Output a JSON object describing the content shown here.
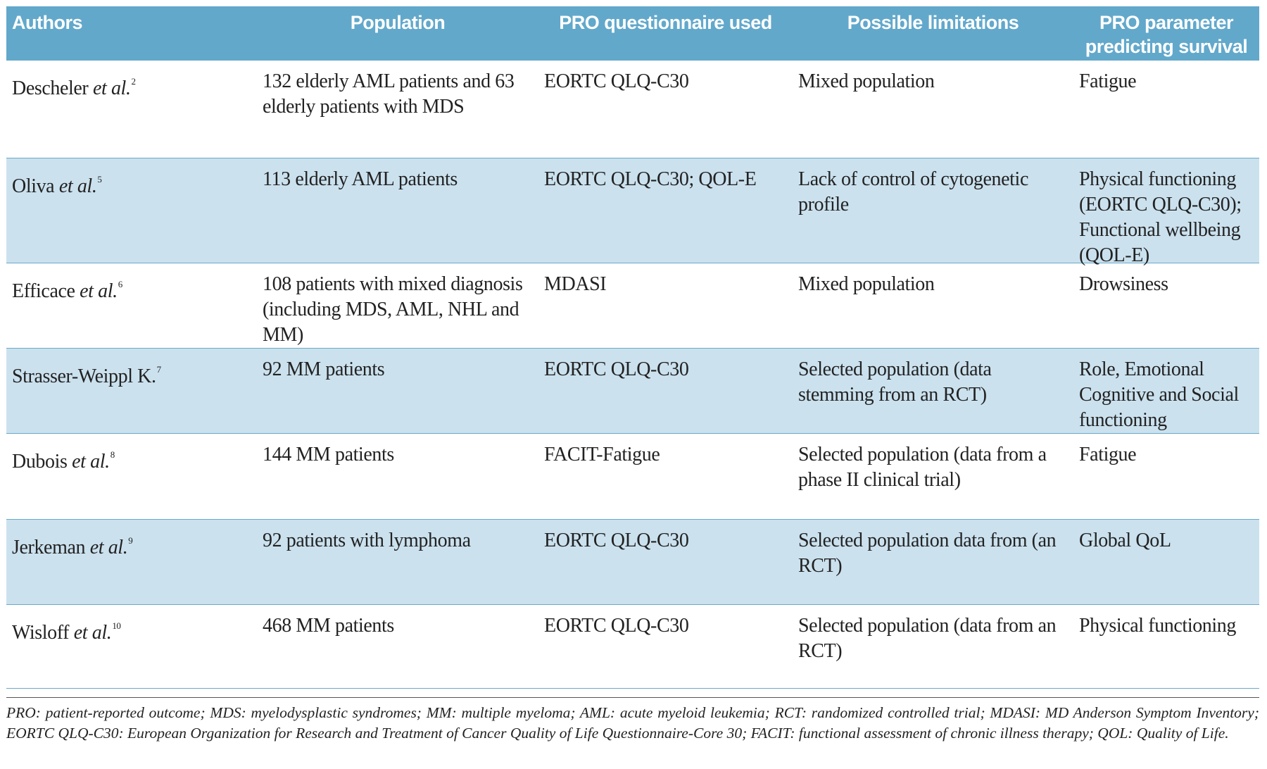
{
  "table": {
    "headers": [
      "Authors",
      "Population",
      "PRO questionnaire used",
      "Possible limitations",
      "PRO parameter predicting survival"
    ],
    "rows": [
      {
        "author": "Descheler",
        "et_al": "et al.",
        "ref": "2",
        "population": "132 elderly AML patients and 63 elderly patients with MDS",
        "questionnaire": "EORTC QLQ-C30",
        "limitations": "Mixed population",
        "parameter": "Fatigue"
      },
      {
        "author": "Oliva",
        "et_al": "et al.",
        "ref": "5",
        "population": "113 elderly AML patients",
        "questionnaire": "EORTC QLQ-C30; QOL-E",
        "limitations": "Lack of control of cytogenetic profile",
        "parameter": "Physical functioning (EORTC QLQ-C30); Functional wellbeing (QOL-E)"
      },
      {
        "author": "Efficace",
        "et_al": "et al.",
        "ref": "6",
        "population": "108 patients with mixed diagnosis (including MDS, AML, NHL and MM)",
        "questionnaire": "MDASI",
        "limitations": "Mixed population",
        "parameter": "Drowsiness"
      },
      {
        "author": "Strasser-Weippl K.",
        "ref": "7",
        "population": "92 MM patients",
        "questionnaire": "EORTC QLQ-C30",
        "limitations": "Selected population (data stemming from an RCT)",
        "parameter": "Role, Emotional Cognitive and Social functioning"
      },
      {
        "author": "Dubois",
        "et_al": "et al.",
        "ref": "8",
        "population": "144 MM patients",
        "questionnaire": "FACIT-Fatigue",
        "limitations": "Selected population (data from a phase II clinical trial)",
        "parameter": "Fatigue"
      },
      {
        "author": "Jerkeman",
        "et_al": "et al.",
        "ref": "9",
        "population": "92 patients with lymphoma",
        "questionnaire": "EORTC QLQ-C30",
        "limitations": "Selected population data from (an RCT)",
        "parameter": "Global QoL"
      },
      {
        "author": "Wisloff",
        "et_al": "et al.",
        "ref": "10",
        "population": "468 MM patients",
        "questionnaire": "EORTC QLQ-C30",
        "limitations": "Selected population (data from an RCT)",
        "parameter": "Physical functioning"
      }
    ],
    "footnote": "PRO: patient-reported outcome; MDS: myelodysplastic syndromes; MM: multiple myeloma; AML: acute myeloid leukemia; RCT: randomized controlled trial; MDASI: MD Anderson Symptom Inventory; EORTC QLQ-C30: European Organization for Research and Treatment of Cancer Quality of Life Questionnaire-Core 30; FACIT: functional assessment of chronic illness therapy; QOL: Quality of Life."
  }
}
